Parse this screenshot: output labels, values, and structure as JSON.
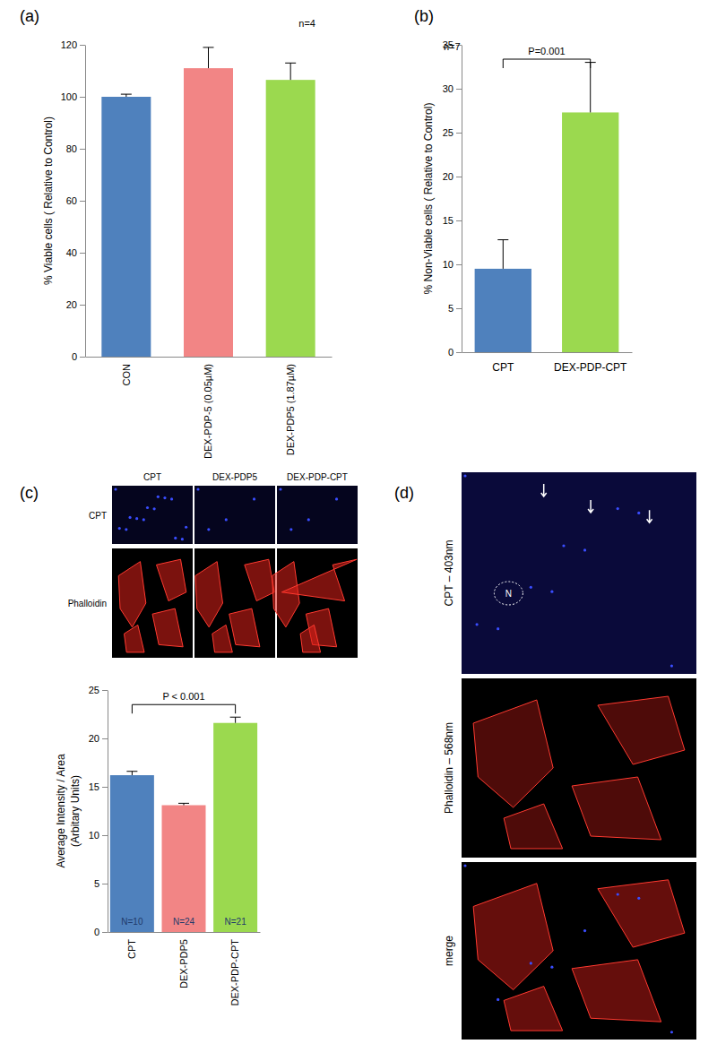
{
  "chart_data": [
    {
      "type": "bar",
      "panel": "(a)",
      "annotations": [
        "n=4"
      ],
      "ylabel": "% Viable cells ( Relative to Control)",
      "categories": [
        "CON",
        "DEX-PDP-5 (0.05µM)",
        "DEX-PDP5 (1.87µM)"
      ],
      "values": [
        100,
        111,
        106.5
      ],
      "errors": [
        1,
        8,
        6.5
      ],
      "colors": [
        "#4f81bd",
        "#f28585",
        "#9bd94f"
      ],
      "ylim": [
        0,
        120
      ],
      "yticks": [
        0,
        20,
        40,
        60,
        80,
        100,
        120
      ]
    },
    {
      "type": "bar",
      "panel": "(b)",
      "annotations": [
        "n=7"
      ],
      "significance": "P=0.001",
      "ylabel": "% Non-Viable cells ( Relative to Control)",
      "categories": [
        "CPT",
        "DEX-PDP-CPT"
      ],
      "values": [
        9.5,
        27.3
      ],
      "errors": [
        3.3,
        5.7
      ],
      "colors": [
        "#4f81bd",
        "#9bd94f"
      ],
      "ylim": [
        0,
        35
      ],
      "yticks": [
        0,
        5,
        10,
        15,
        20,
        25,
        30,
        35
      ]
    },
    {
      "type": "bar",
      "significance": "P < 0.001",
      "ylabel": [
        "Average Intensity / Area",
        "(Arbitary Units)"
      ],
      "categories": [
        "CPT",
        "DEX-PDP5",
        "DEX-PDP-CPT"
      ],
      "values": [
        16.2,
        13.1,
        21.6
      ],
      "errors": [
        0.4,
        0.2,
        0.6
      ],
      "n_labels": [
        "N=10",
        "N=24",
        "N=21"
      ],
      "colors": [
        "#4f81bd",
        "#f28585",
        "#9bd94f"
      ],
      "ylim": [
        0,
        25
      ],
      "yticks": [
        0,
        5,
        10,
        15,
        20,
        25
      ]
    }
  ],
  "image_panels": [
    {
      "panel": "(c)",
      "columns": [
        "CPT",
        "DEX-PDP5",
        "DEX-PDP-CPT"
      ],
      "rows": [
        "CPT",
        "Phalloidin"
      ]
    },
    {
      "panel": "(d)",
      "rows": [
        "CPT – 403nm",
        "Phalloidin – 568nm",
        "merge"
      ],
      "nucleus_label": "N"
    }
  ]
}
